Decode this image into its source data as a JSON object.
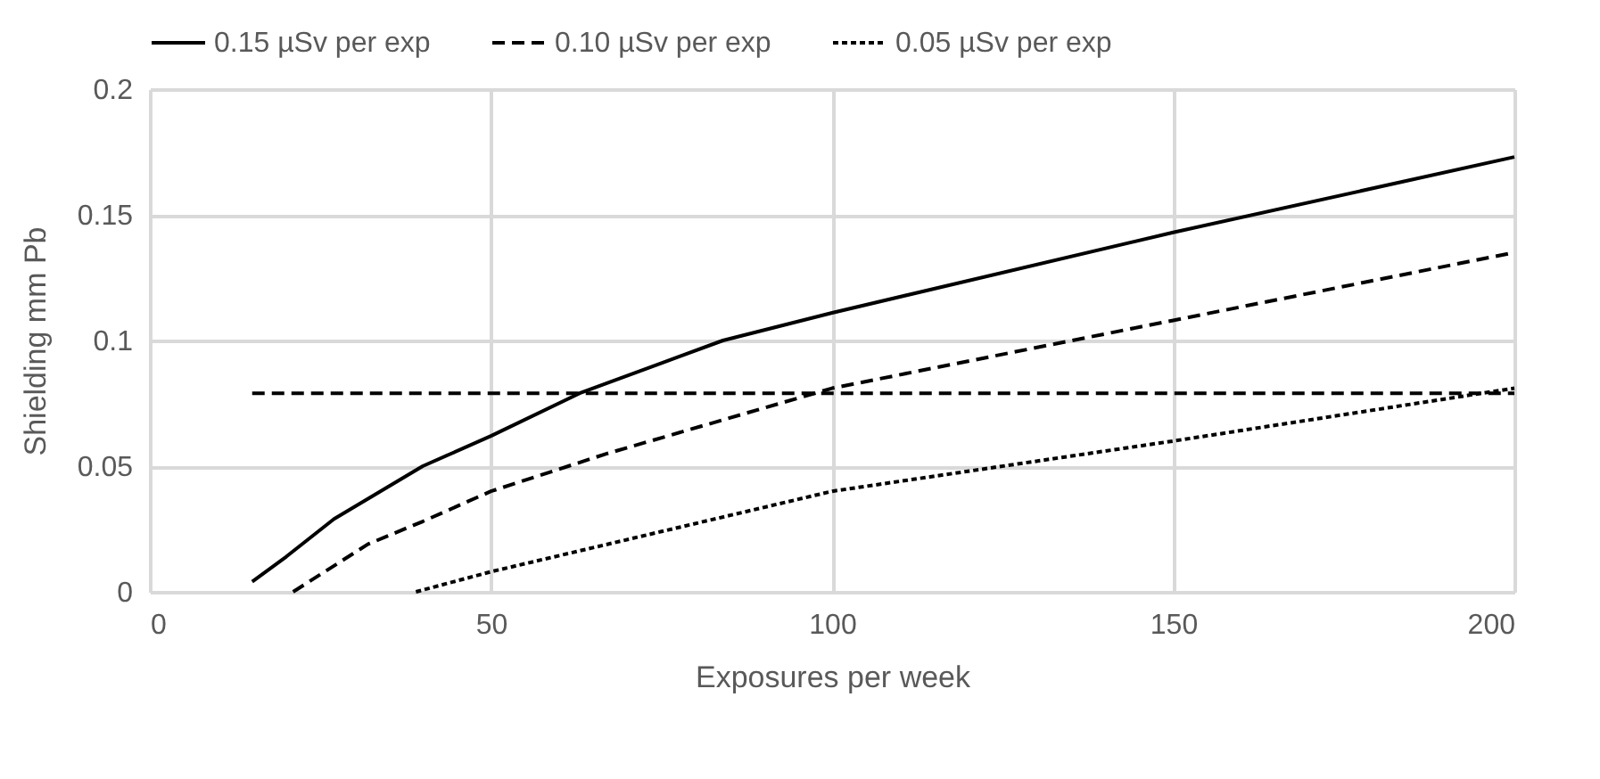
{
  "chart_data": {
    "type": "line",
    "xlabel": "Exposures per week",
    "ylabel": "Shielding mm Pb",
    "series": [
      {
        "name": "0.15 µSv per exp",
        "color": "#000000",
        "line_style": "solid",
        "x": [
          15,
          20,
          27,
          40,
          50,
          63,
          75,
          84,
          100,
          150,
          200
        ],
        "values": [
          0.004,
          0.014,
          0.029,
          0.05,
          0.062,
          0.079,
          0.091,
          0.1,
          0.111,
          0.143,
          0.173
        ]
      },
      {
        "name": "0.10 µSv per exp",
        "color": "#000000",
        "line_style": "dashed",
        "x": [
          21,
          32,
          40,
          50,
          67,
          100,
          150,
          200
        ],
        "values": [
          0,
          0.019,
          0.028,
          0.04,
          0.055,
          0.081,
          0.108,
          0.135
        ]
      },
      {
        "name": "0.05 µSv per exp",
        "color": "#000000",
        "line_style": "dotted",
        "x": [
          39,
          50,
          75,
          100,
          150,
          200
        ],
        "values": [
          0,
          0.008,
          0.024,
          0.04,
          0.06,
          0.081
        ]
      },
      {
        "color": "#000000",
        "line_style": "dashed",
        "x": [
          15,
          200
        ],
        "values": [
          0.079,
          0.079
        ]
      }
    ],
    "xlim": [
      0,
      200
    ],
    "xticks": [
      0,
      50,
      100,
      150,
      200
    ],
    "ylim": [
      0,
      0.2
    ],
    "yticks": [
      0,
      0.05,
      0.1,
      0.15,
      0.2
    ],
    "grid": true,
    "legend": "top"
  }
}
